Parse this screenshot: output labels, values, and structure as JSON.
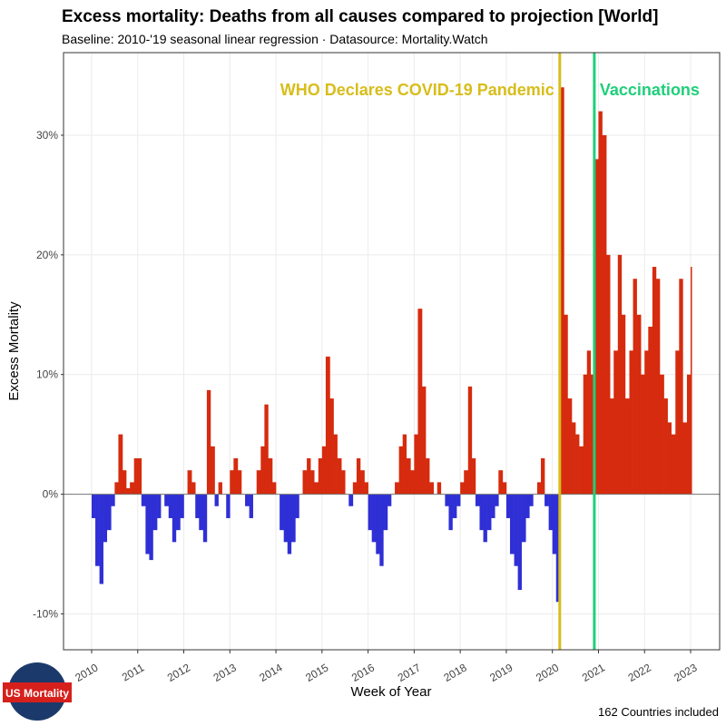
{
  "chart_data": {
    "type": "area",
    "title": "Excess mortality: Deaths from all causes compared to projection [World]",
    "subtitle": "Baseline: 2010-'19 seasonal linear regression · Datasource: Mortality.Watch",
    "xlabel": "Week of Year",
    "ylabel": "Excess Mortality",
    "footnote": "162 Countries included",
    "logo": "US Mortality",
    "color_positive": "#d62b0e",
    "color_negative": "#2f2fd6",
    "grid": true,
    "xlim": [
      2009.39,
      2023.63
    ],
    "xticks": [
      2010,
      2011,
      2012,
      2013,
      2014,
      2015,
      2016,
      2017,
      2018,
      2019,
      2020,
      2021,
      2022,
      2023
    ],
    "ylim": [
      -13,
      36.9
    ],
    "yticks": [
      {
        "value": -10,
        "label": "-10%"
      },
      {
        "value": 0,
        "label": "0%"
      },
      {
        "value": 10,
        "label": "10%"
      },
      {
        "value": 20,
        "label": "20%"
      },
      {
        "value": 30,
        "label": "30%"
      }
    ],
    "annotations": [
      {
        "label": "WHO Declares COVID-19 Pandemic",
        "x": 2020.16,
        "color": "#d8bd1a"
      },
      {
        "label": "Vaccinations",
        "x": 2020.91,
        "color": "#1fcf7a"
      }
    ],
    "x": [
      2010,
      2010.08,
      2010.17,
      2010.25,
      2010.33,
      2010.42,
      2010.5,
      2010.58,
      2010.67,
      2010.75,
      2010.83,
      2010.92,
      2011,
      2011.08,
      2011.17,
      2011.25,
      2011.33,
      2011.42,
      2011.5,
      2011.58,
      2011.67,
      2011.75,
      2011.83,
      2011.92,
      2012,
      2012.08,
      2012.17,
      2012.25,
      2012.33,
      2012.42,
      2012.5,
      2012.58,
      2012.67,
      2012.75,
      2012.83,
      2012.92,
      2013,
      2013.08,
      2013.17,
      2013.25,
      2013.33,
      2013.42,
      2013.5,
      2013.58,
      2013.67,
      2013.75,
      2013.83,
      2013.92,
      2014,
      2014.08,
      2014.17,
      2014.25,
      2014.33,
      2014.42,
      2014.5,
      2014.58,
      2014.67,
      2014.75,
      2014.83,
      2014.92,
      2015,
      2015.08,
      2015.17,
      2015.25,
      2015.33,
      2015.42,
      2015.5,
      2015.58,
      2015.67,
      2015.75,
      2015.83,
      2015.92,
      2016,
      2016.08,
      2016.17,
      2016.25,
      2016.33,
      2016.42,
      2016.5,
      2016.58,
      2016.67,
      2016.75,
      2016.83,
      2016.92,
      2017,
      2017.08,
      2017.17,
      2017.25,
      2017.33,
      2017.42,
      2017.5,
      2017.58,
      2017.67,
      2017.75,
      2017.83,
      2017.92,
      2018,
      2018.08,
      2018.17,
      2018.25,
      2018.33,
      2018.42,
      2018.5,
      2018.58,
      2018.67,
      2018.75,
      2018.83,
      2018.92,
      2019,
      2019.08,
      2019.17,
      2019.25,
      2019.33,
      2019.42,
      2019.5,
      2019.58,
      2019.67,
      2019.75,
      2019.83,
      2019.92,
      2020,
      2020.08,
      2020.17,
      2020.25,
      2020.33,
      2020.42,
      2020.5,
      2020.58,
      2020.67,
      2020.75,
      2020.83,
      2020.92,
      2021,
      2021.08,
      2021.17,
      2021.25,
      2021.33,
      2021.42,
      2021.5,
      2021.58,
      2021.67,
      2021.75,
      2021.83,
      2021.92,
      2022,
      2022.08,
      2022.17,
      2022.25,
      2022.33,
      2022.42,
      2022.5,
      2022.58,
      2022.67,
      2022.75,
      2022.83,
      2022.92,
      2023
    ],
    "values": [
      -2,
      -6,
      -7.5,
      -4,
      -3,
      -1,
      1,
      5,
      2,
      0.5,
      1,
      3,
      3,
      -1,
      -5,
      -5.5,
      -3,
      -2,
      0,
      -1,
      -2,
      -4,
      -3,
      -2,
      0,
      2,
      1,
      -2,
      -3,
      -4,
      8.7,
      4,
      -1,
      1,
      0,
      -2,
      2,
      3,
      2,
      0,
      -1,
      -2,
      0,
      2,
      4,
      7.5,
      3,
      1,
      0,
      -3,
      -4,
      -5,
      -4,
      -2,
      0,
      2,
      3,
      2,
      1,
      3,
      4,
      11.5,
      8,
      5,
      3,
      2,
      0,
      -1,
      1,
      3,
      2,
      1,
      -3,
      -4,
      -5,
      -6,
      -3,
      -1,
      0,
      1,
      4,
      5,
      3,
      2,
      5,
      15.5,
      9,
      3,
      1,
      0,
      1,
      0,
      -1,
      -3,
      -2,
      -1,
      1,
      2,
      9,
      3,
      -1,
      -3,
      -4,
      -3,
      -2,
      -1,
      2,
      1,
      -2,
      -5,
      -6,
      -8,
      -4,
      -2,
      -1,
      0,
      1,
      3,
      -1,
      -3,
      -5,
      -9,
      34,
      15,
      8,
      6,
      5,
      4,
      10,
      12,
      10,
      28,
      32,
      30,
      20,
      8,
      12,
      20,
      15,
      8,
      12,
      18,
      15,
      10,
      12,
      14,
      19,
      18,
      10,
      8,
      6,
      5,
      12,
      18,
      6,
      10,
      19
    ]
  }
}
